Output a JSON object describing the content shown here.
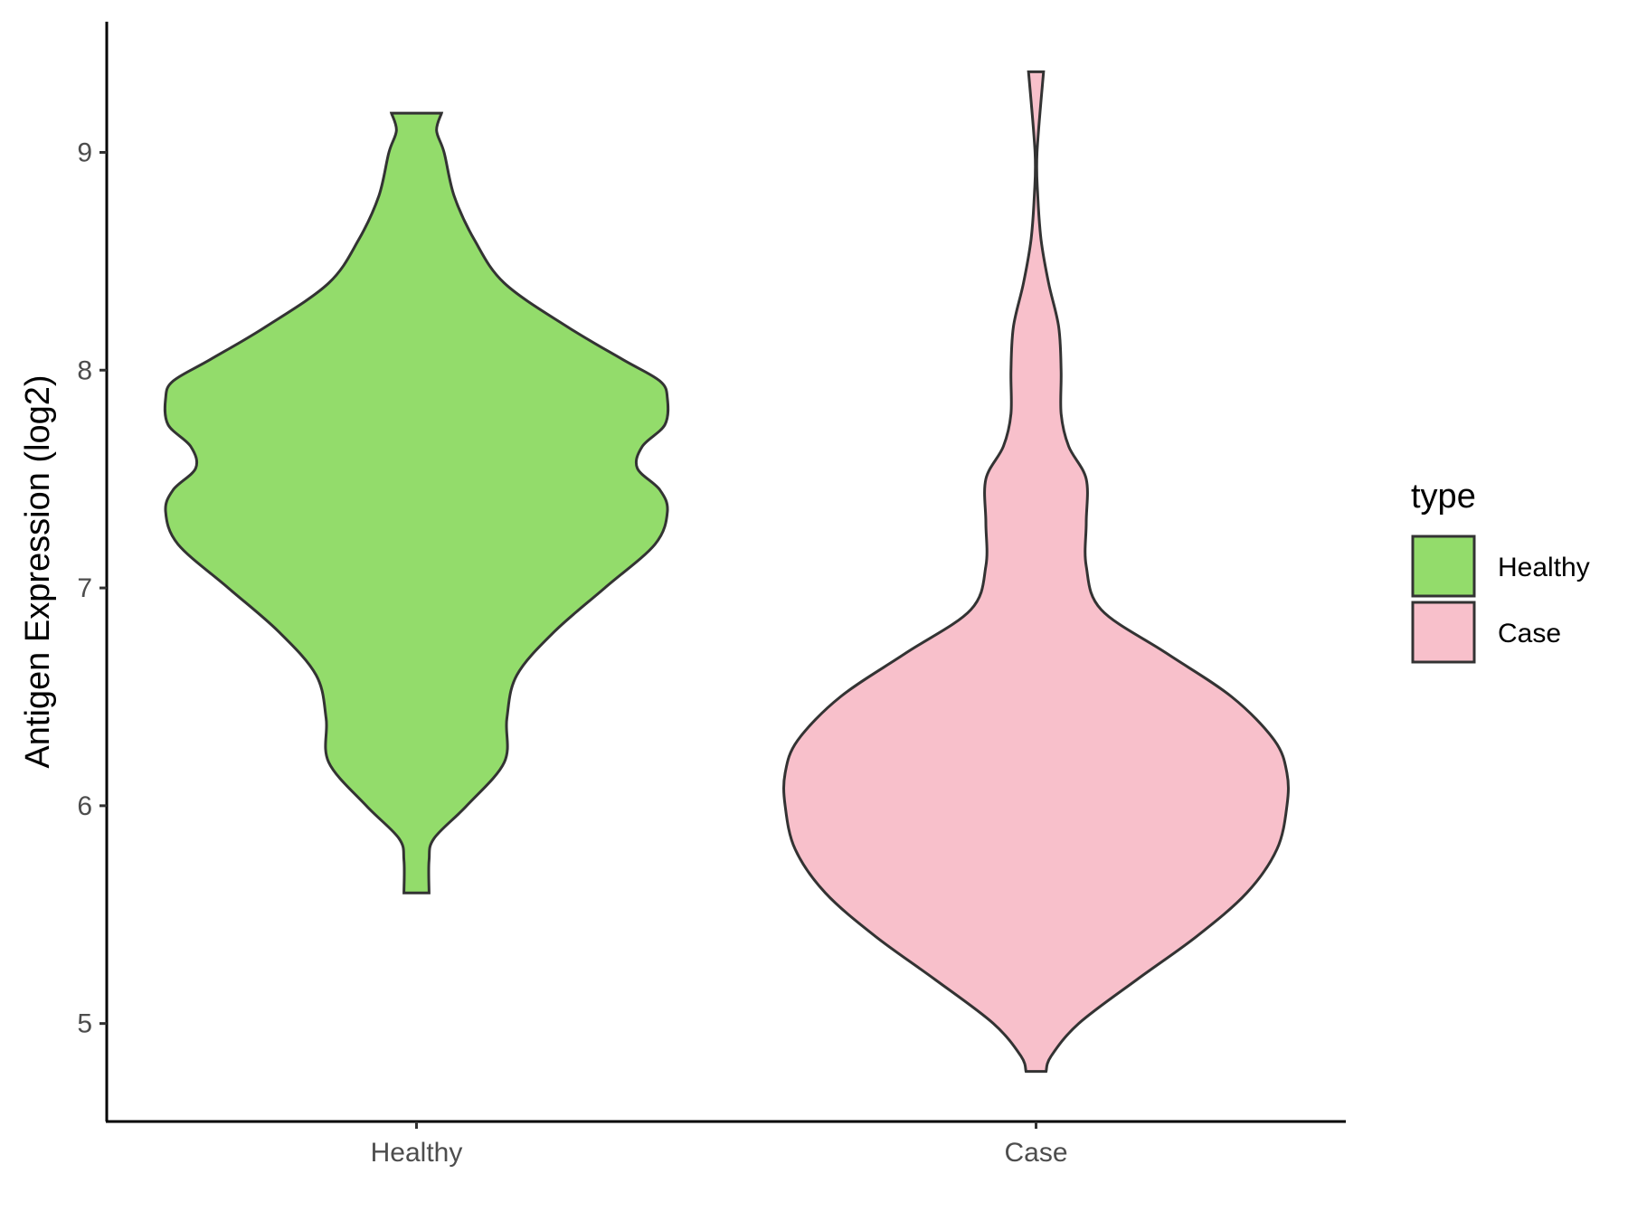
{
  "chart_data": {
    "type": "violin",
    "title": "",
    "xlabel": "",
    "ylabel": "Antigen Expression (log2)",
    "ylim": [
      4.55,
      9.6
    ],
    "yticks": [
      5,
      6,
      7,
      8,
      9
    ],
    "categories": [
      "Healthy",
      "Case"
    ],
    "grid": false,
    "legend": {
      "title": "type",
      "position": "right",
      "entries": [
        {
          "label": "Healthy",
          "color": "#93DC6B"
        },
        {
          "label": "Case",
          "color": "#F8C0CB"
        }
      ]
    },
    "series": [
      {
        "name": "Healthy",
        "color": "#93DC6B",
        "min": 5.6,
        "max": 9.18,
        "profile": [
          [
            5.6,
            0.05
          ],
          [
            5.75,
            0.05
          ],
          [
            5.85,
            0.07
          ],
          [
            6.0,
            0.2
          ],
          [
            6.2,
            0.35
          ],
          [
            6.4,
            0.36
          ],
          [
            6.6,
            0.4
          ],
          [
            6.8,
            0.55
          ],
          [
            7.0,
            0.75
          ],
          [
            7.2,
            0.95
          ],
          [
            7.35,
            1.0
          ],
          [
            7.45,
            0.97
          ],
          [
            7.55,
            0.88
          ],
          [
            7.65,
            0.9
          ],
          [
            7.75,
            0.99
          ],
          [
            7.87,
            1.0
          ],
          [
            7.95,
            0.97
          ],
          [
            8.05,
            0.82
          ],
          [
            8.2,
            0.6
          ],
          [
            8.4,
            0.35
          ],
          [
            8.6,
            0.23
          ],
          [
            8.8,
            0.15
          ],
          [
            9.0,
            0.11
          ],
          [
            9.1,
            0.08
          ],
          [
            9.18,
            0.1
          ]
        ]
      },
      {
        "name": "Case",
        "color": "#F8C0CB",
        "min": 4.78,
        "max": 9.37,
        "profile": [
          [
            4.78,
            0.04
          ],
          [
            4.85,
            0.06
          ],
          [
            5.0,
            0.17
          ],
          [
            5.2,
            0.4
          ],
          [
            5.4,
            0.64
          ],
          [
            5.6,
            0.84
          ],
          [
            5.8,
            0.96
          ],
          [
            6.0,
            1.0
          ],
          [
            6.15,
            1.0
          ],
          [
            6.3,
            0.95
          ],
          [
            6.5,
            0.78
          ],
          [
            6.7,
            0.52
          ],
          [
            6.9,
            0.26
          ],
          [
            7.1,
            0.2
          ],
          [
            7.3,
            0.2
          ],
          [
            7.5,
            0.2
          ],
          [
            7.65,
            0.13
          ],
          [
            7.8,
            0.1
          ],
          [
            8.0,
            0.1
          ],
          [
            8.2,
            0.09
          ],
          [
            8.4,
            0.05
          ],
          [
            8.6,
            0.02
          ],
          [
            8.8,
            0.007
          ],
          [
            9.0,
            0.004
          ],
          [
            9.37,
            0.03
          ]
        ]
      }
    ]
  }
}
